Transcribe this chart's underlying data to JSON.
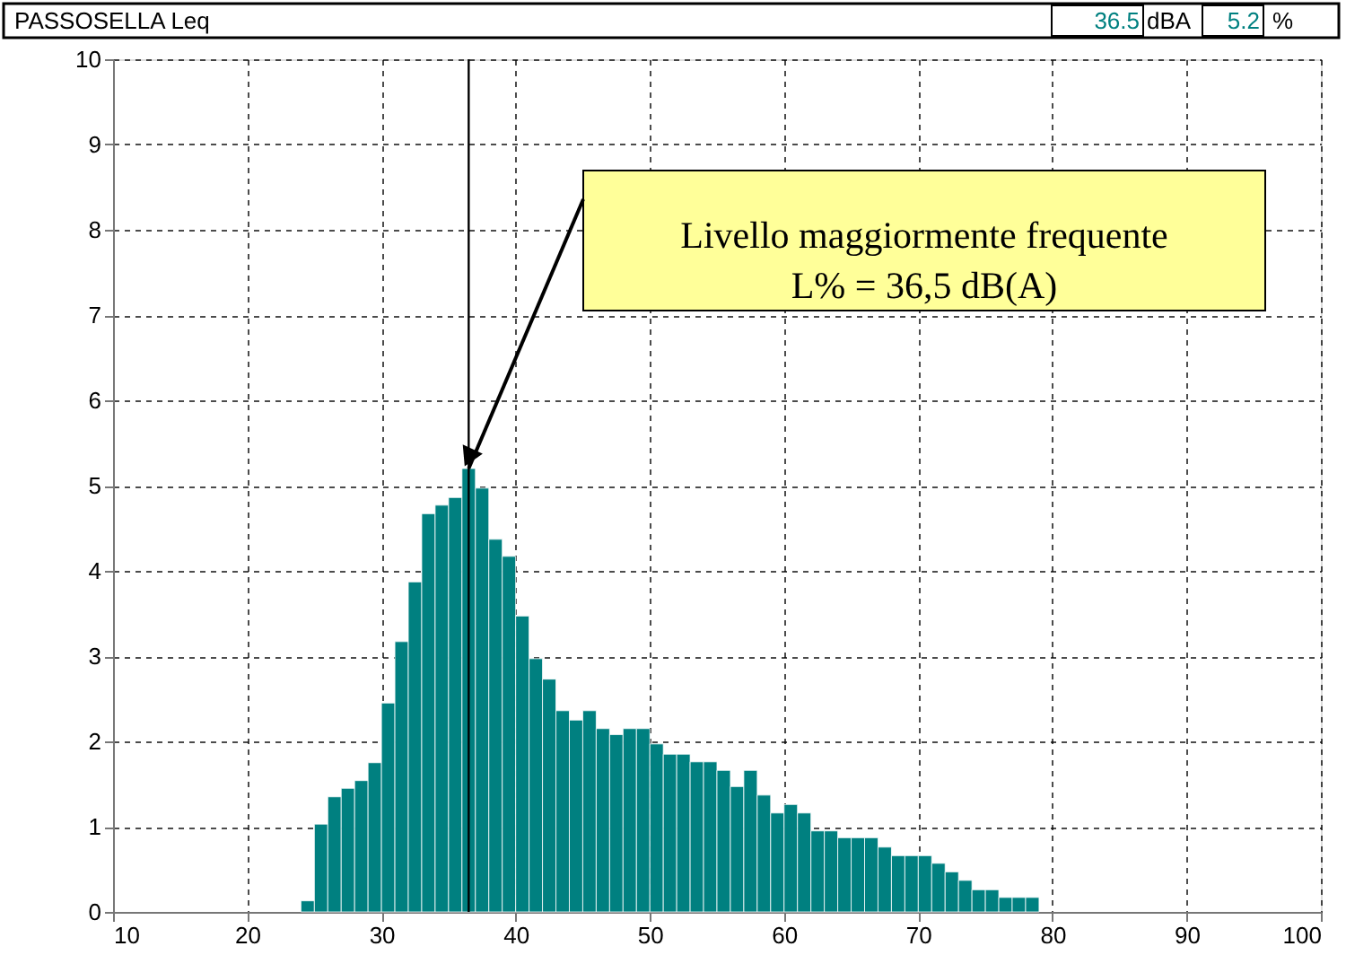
{
  "chart_data": {
    "type": "histogram",
    "title": "PASSOSELLA Leq",
    "bins": [
      24,
      25,
      26,
      27,
      28,
      29,
      30,
      31,
      32,
      33,
      34,
      35,
      36,
      37,
      38,
      39,
      40,
      41,
      42,
      43,
      44,
      45,
      46,
      47,
      48,
      49,
      50,
      51,
      52,
      53,
      54,
      55,
      56,
      57,
      58,
      59,
      60,
      61,
      62,
      63,
      64,
      65,
      66,
      67,
      68,
      69,
      70,
      71,
      72,
      73,
      74,
      75,
      76,
      77,
      78,
      79
    ],
    "values": [
      0.13,
      1.03,
      1.35,
      1.45,
      1.54,
      1.75,
      2.45,
      3.17,
      3.87,
      4.67,
      4.77,
      4.86,
      5.2,
      4.97,
      4.37,
      4.17,
      3.47,
      2.97,
      2.73,
      2.36,
      2.25,
      2.36,
      2.15,
      2.08,
      2.15,
      2.15,
      1.97,
      1.85,
      1.85,
      1.76,
      1.76,
      1.66,
      1.47,
      1.66,
      1.37,
      1.16,
      1.26,
      1.16,
      0.95,
      0.95,
      0.87,
      0.87,
      0.87,
      0.76,
      0.66,
      0.66,
      0.66,
      0.57,
      0.47,
      0.37,
      0.26,
      0.26,
      0.17,
      0.17,
      0.17
    ],
    "color": "#008080",
    "xlim": [
      10,
      100
    ],
    "xticks": [
      10,
      20,
      30,
      40,
      50,
      60,
      70,
      80,
      90,
      100
    ],
    "ylim": [
      0,
      10
    ],
    "yticks": [
      0,
      1,
      2,
      3,
      4,
      5,
      6,
      7,
      8,
      9,
      10
    ],
    "grid": true,
    "ref_lines": [
      {
        "axis": "x",
        "value": 36.5,
        "color": "#000000"
      }
    ],
    "annotations": [
      "Livello maggiormente frequente\nL% = 36,5 dB(A)",
      "36.5",
      "dBA",
      "5.2",
      "%"
    ]
  }
}
